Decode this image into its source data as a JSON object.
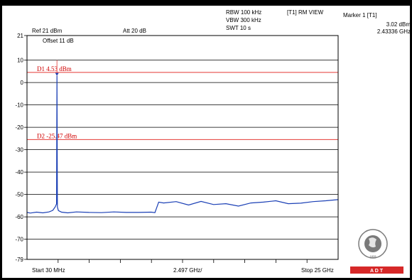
{
  "header": {
    "rbw": "RBW 100 kHz",
    "vbw": "VBW 300 kHz",
    "swt": "SWT 10 s",
    "trace_mode": "[T1] RM VIEW",
    "marker_title": "Marker 1 [T1]",
    "marker_level": "3.02 dBm",
    "marker_freq": "2.43336 GHz",
    "ref_level": "Ref 21 dBm",
    "attenuation": "Att  20 dB",
    "offset": "Offset 11 dB"
  },
  "footer": {
    "start": "Start 30 MHz",
    "span_per_div": "2.497 GHz/",
    "stop": "Stop 25 GHz"
  },
  "logo": {
    "text_top": "BUREAU VERITAS",
    "year": "1828",
    "banner": "A    D    T",
    "banner_color": "#d62828"
  },
  "colors": {
    "trace": "#1a3fb5",
    "display_line": "#e53935",
    "grid": "#000000"
  },
  "chart_data": {
    "type": "line",
    "title": "",
    "xlabel": "",
    "ylabel": "",
    "x_unit": "MHz",
    "xlim": [
      30,
      25000
    ],
    "ylim": [
      -79,
      21
    ],
    "y_ticks": [
      21,
      10,
      0,
      -10,
      -20,
      -30,
      -40,
      -50,
      -60,
      -70,
      -79
    ],
    "grid": true,
    "display_lines": [
      {
        "label": "D1 4.53 dBm",
        "value": 4.53
      },
      {
        "label": "D2 -25.47 dBm",
        "value": -25.47
      }
    ],
    "marker": {
      "x": 2433.36,
      "y": 3.02
    },
    "series": [
      {
        "x": [
          30,
          300,
          800,
          1300,
          1800,
          2100,
          2300,
          2400,
          2433.36,
          2470,
          2550,
          2800,
          3300,
          4000,
          5000,
          6000,
          7000,
          8000,
          9000,
          10000,
          10300,
          10600,
          11000,
          12000,
          13000,
          14000,
          15000,
          16000,
          17000,
          18000,
          19000,
          20000,
          21000,
          22000,
          23000,
          24000,
          25000
        ],
        "y": [
          -58,
          -58.3,
          -57.9,
          -58.2,
          -57.8,
          -57.1,
          -55.5,
          -54.2,
          3.02,
          -55.6,
          -57.2,
          -57.9,
          -58.2,
          -57.8,
          -58,
          -58.1,
          -57.8,
          -58,
          -58,
          -57.9,
          -58.1,
          -53.4,
          -53.8,
          -53.2,
          -54.7,
          -53.1,
          -54.5,
          -54.1,
          -55.2,
          -53.8,
          -53.4,
          -52.8,
          -54.1,
          -53.9,
          -53.2,
          -52.8,
          -52.3
        ]
      }
    ]
  }
}
